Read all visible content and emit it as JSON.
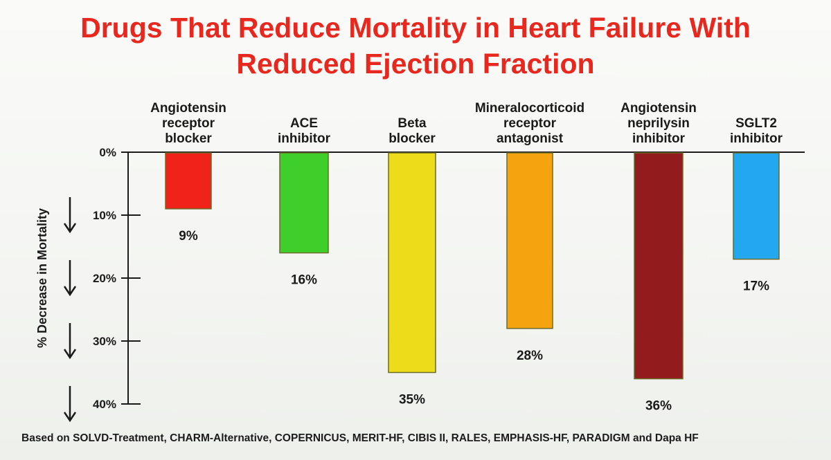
{
  "slide": {
    "title_line1": "Drugs That Reduce Mortality in Heart Failure With",
    "title_line2": "Reduced Ejection Fraction",
    "source": "Based on SOLVD-Treatment, CHARM-Alternative, COPERNICUS, MERIT-HF, CIBIS II, RALES, EMPHASIS-HF, PARADIGM and Dapa HF"
  },
  "chart_data": {
    "type": "bar",
    "orientation": "downward",
    "title": "Drugs That Reduce Mortality in Heart Failure With Reduced Ejection Fraction",
    "ylabel": "% Decrease in Mortality",
    "ylim": [
      0,
      40
    ],
    "yticks": [
      0,
      10,
      20,
      30,
      40
    ],
    "ytick_labels": [
      "0%",
      "10%",
      "20%",
      "30%",
      "40%"
    ],
    "categories": [
      [
        "Angiotensin",
        "receptor",
        "blocker"
      ],
      [
        "ACE",
        "inhibitor"
      ],
      [
        "Beta",
        "blocker"
      ],
      [
        "Mineralocorticoid",
        "receptor",
        "antagonist"
      ],
      [
        "Angiotensin",
        "neprilysin",
        "inhibitor"
      ],
      [
        "SGLT2",
        "inhibitor"
      ]
    ],
    "values": [
      9,
      16,
      35,
      28,
      36,
      17
    ],
    "value_labels": [
      "9%",
      "16%",
      "35%",
      "28%",
      "36%",
      "17%"
    ],
    "colors": [
      "#f0231b",
      "#3fcf2b",
      "#ecdc1a",
      "#f5a410",
      "#921b1d",
      "#23a8f0"
    ],
    "bar_border": "#6b6b2a",
    "grid": false,
    "legend": "none"
  }
}
